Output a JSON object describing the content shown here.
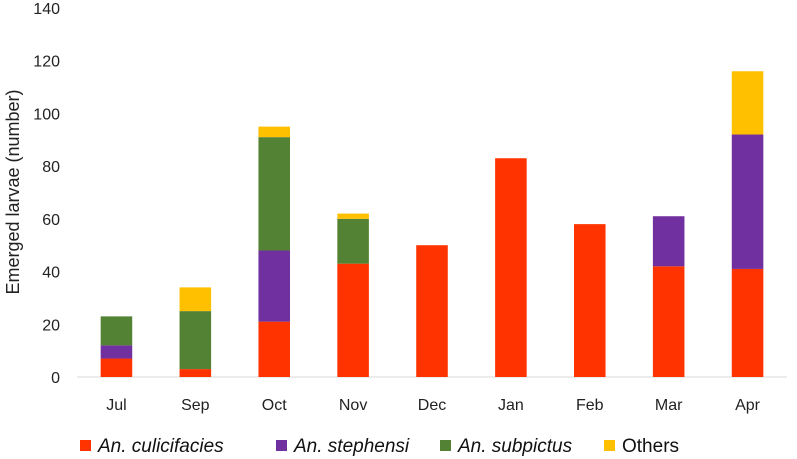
{
  "chart_data": {
    "type": "bar",
    "stacked": true,
    "categories": [
      "Jul",
      "Sep",
      "Oct",
      "Nov",
      "Dec",
      "Jan",
      "Feb",
      "Mar",
      "Apr"
    ],
    "series": [
      {
        "name": "An. culicifacies",
        "italic": true,
        "color": "#ff3300",
        "values": [
          7,
          3,
          21,
          43,
          50,
          83,
          58,
          42,
          41
        ]
      },
      {
        "name": "An. stephensi",
        "italic": true,
        "color": "#7030a0",
        "values": [
          5,
          0,
          27,
          0,
          0,
          0,
          0,
          19,
          51
        ]
      },
      {
        "name": "An. subpictus",
        "italic": true,
        "color": "#548235",
        "values": [
          11,
          22,
          43,
          17,
          0,
          0,
          0,
          0,
          0
        ]
      },
      {
        "name": "Others",
        "italic": false,
        "color": "#ffc000",
        "values": [
          0,
          9,
          4,
          2,
          0,
          0,
          0,
          0,
          24
        ]
      }
    ],
    "title": "",
    "xlabel": "",
    "ylabel": "Emerged larvae (number)",
    "ylim": [
      0,
      140
    ],
    "yticks": [
      0,
      20,
      40,
      60,
      80,
      100,
      120,
      140
    ],
    "grid": false,
    "legend_position": "bottom"
  }
}
